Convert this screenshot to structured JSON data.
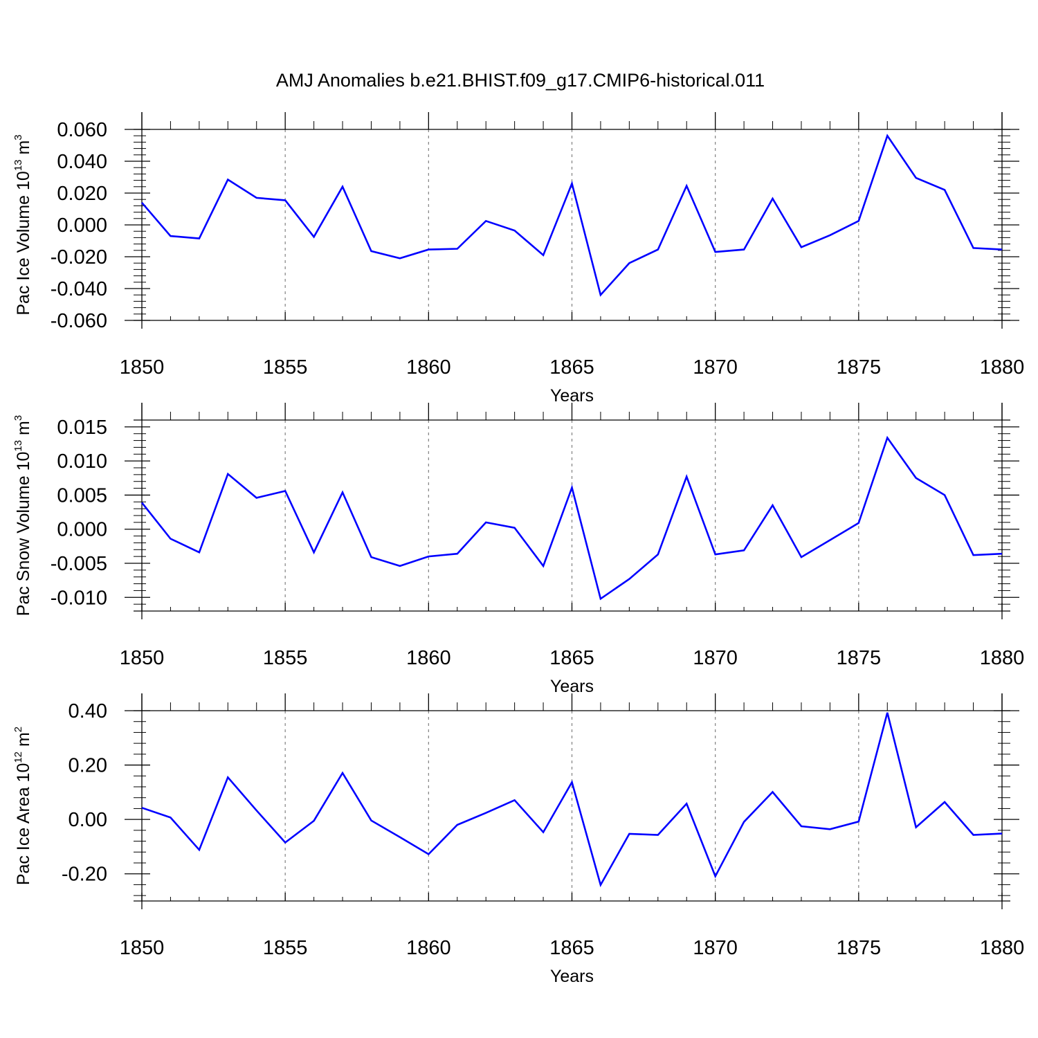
{
  "title": "AMJ Anomalies b.e21.BHIST.f09_g17.CMIP6-historical.011",
  "colors": {
    "line": "#0000ff",
    "axes": "#000000",
    "grid": "#808080",
    "background": "#ffffff"
  },
  "chart_data": [
    {
      "type": "line",
      "ylabel": {
        "text": "Pac Ice Volume 10",
        "exponent": "13",
        "unit": "m",
        "unit_exponent": "3"
      },
      "xlabel": "Years",
      "xlim": [
        1850,
        1880
      ],
      "ylim": [
        -0.06,
        0.06
      ],
      "grid": "vertical dashed at major x ticks",
      "x_ticks": [
        1850,
        1855,
        1860,
        1865,
        1870,
        1875,
        1880
      ],
      "x_tick_labels": [
        "1850",
        "1855",
        "1860",
        "1865",
        "1870",
        "1875",
        "1880"
      ],
      "y_ticks": [
        0.06,
        0.04,
        0.02,
        0.0,
        -0.02,
        -0.04,
        -0.06
      ],
      "y_tick_labels": [
        "0.060",
        "0.040",
        "0.020",
        "0.000",
        "-0.020",
        "-0.040",
        "-0.060"
      ],
      "x": [
        1850,
        1851,
        1852,
        1853,
        1854,
        1855,
        1856,
        1857,
        1858,
        1859,
        1860,
        1861,
        1862,
        1863,
        1864,
        1865,
        1866,
        1867,
        1868,
        1869,
        1870,
        1871,
        1872,
        1873,
        1874,
        1875,
        1876,
        1877,
        1878,
        1879,
        1880
      ],
      "values": [
        0.014,
        -0.007,
        -0.0085,
        0.0285,
        0.017,
        0.0155,
        -0.0075,
        0.024,
        -0.0165,
        -0.021,
        -0.0155,
        -0.015,
        0.0025,
        -0.0035,
        -0.019,
        0.026,
        -0.044,
        -0.024,
        -0.0155,
        0.0245,
        -0.017,
        -0.0155,
        0.0165,
        -0.014,
        -0.0065,
        0.0025,
        0.056,
        0.0295,
        0.022,
        -0.0145,
        -0.0155
      ]
    },
    {
      "type": "line",
      "ylabel": {
        "text": "Pac Snow Volume 10",
        "exponent": "13",
        "unit": "m",
        "unit_exponent": "3"
      },
      "xlabel": "Years",
      "xlim": [
        1850,
        1880
      ],
      "ylim": [
        -0.012,
        0.016
      ],
      "grid": "vertical dashed at major x ticks",
      "x_ticks": [
        1850,
        1855,
        1860,
        1865,
        1870,
        1875,
        1880
      ],
      "x_tick_labels": [
        "1850",
        "1855",
        "1860",
        "1865",
        "1870",
        "1875",
        "1880"
      ],
      "y_ticks": [
        0.015,
        0.01,
        0.005,
        0.0,
        -0.005,
        -0.01
      ],
      "y_tick_labels": [
        "0.015",
        "0.010",
        "0.005",
        "0.000",
        "-0.005",
        "-0.010"
      ],
      "x": [
        1850,
        1851,
        1852,
        1853,
        1854,
        1855,
        1856,
        1857,
        1858,
        1859,
        1860,
        1861,
        1862,
        1863,
        1864,
        1865,
        1866,
        1867,
        1868,
        1869,
        1870,
        1871,
        1872,
        1873,
        1874,
        1875,
        1876,
        1877,
        1878,
        1879,
        1880
      ],
      "values": [
        0.0039,
        -0.0014,
        -0.0034,
        0.0081,
        0.0046,
        0.0056,
        -0.0034,
        0.0054,
        -0.0041,
        -0.0054,
        -0.004,
        -0.0036,
        0.001,
        0.0002,
        -0.0054,
        0.0061,
        -0.0102,
        -0.0073,
        -0.0037,
        0.0077,
        -0.0037,
        -0.0031,
        0.0035,
        -0.0041,
        -0.0016,
        0.0009,
        0.0134,
        0.0075,
        0.005,
        -0.0038,
        -0.0036
      ]
    },
    {
      "type": "line",
      "ylabel": {
        "text": "Pac Ice Area 10",
        "exponent": "12",
        "unit": "m",
        "unit_exponent": "2"
      },
      "xlabel": "Years",
      "xlim": [
        1850,
        1880
      ],
      "ylim": [
        -0.3,
        0.4
      ],
      "grid": "vertical dashed at major x ticks",
      "x_ticks": [
        1850,
        1855,
        1860,
        1865,
        1870,
        1875,
        1880
      ],
      "x_tick_labels": [
        "1850",
        "1855",
        "1860",
        "1865",
        "1870",
        "1875",
        "1880"
      ],
      "y_ticks": [
        0.4,
        0.2,
        0.0,
        -0.2
      ],
      "y_tick_labels": [
        "0.40",
        "0.20",
        "0.00",
        "-0.20"
      ],
      "x": [
        1850,
        1851,
        1852,
        1853,
        1854,
        1855,
        1856,
        1857,
        1858,
        1859,
        1860,
        1861,
        1862,
        1863,
        1864,
        1865,
        1866,
        1867,
        1868,
        1869,
        1870,
        1871,
        1872,
        1873,
        1874,
        1875,
        1876,
        1877,
        1878,
        1879,
        1880
      ],
      "values": [
        0.043,
        0.007,
        -0.112,
        0.155,
        0.033,
        -0.085,
        -0.005,
        0.171,
        -0.004,
        -0.065,
        -0.128,
        -0.02,
        0.024,
        0.071,
        -0.047,
        0.137,
        -0.241,
        -0.053,
        -0.057,
        0.058,
        -0.209,
        -0.009,
        0.101,
        -0.025,
        -0.036,
        -0.008,
        0.393,
        -0.029,
        0.064,
        -0.057,
        -0.052
      ]
    }
  ]
}
